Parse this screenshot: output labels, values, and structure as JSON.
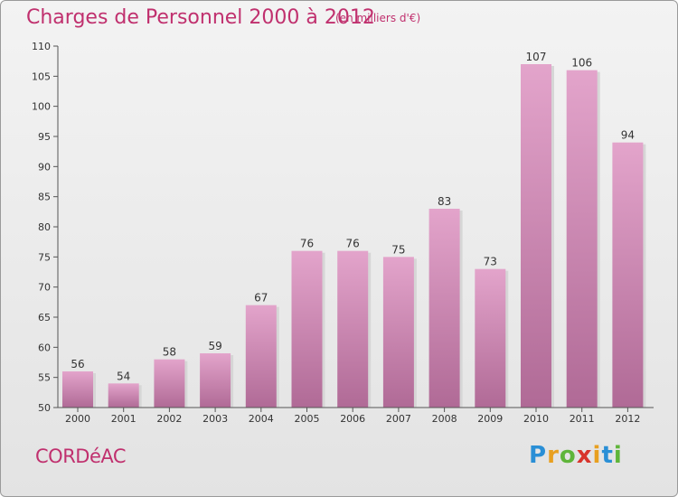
{
  "header": {
    "title": "Charges de Personnel 2000 à 2012",
    "subtitle": "(en milliers d'€)"
  },
  "footer": {
    "city": "CORDéAC",
    "logo_letters": [
      "P",
      "r",
      "o",
      "x",
      "i",
      "t",
      "i"
    ],
    "logo_colors": [
      "#2a8fd6",
      "#e8a020",
      "#5fb53a",
      "#d8342c",
      "#e8a020",
      "#2a8fd6",
      "#5fb53a"
    ]
  },
  "colors": {
    "bar_top": "#e3a4cb",
    "bar_bottom": "#b06a96",
    "accent": "#c0306e"
  },
  "chart_data": {
    "type": "bar",
    "title": "Charges de Personnel 2000 à 2012",
    "subtitle": "(en milliers d'€)",
    "categories": [
      "2000",
      "2001",
      "2002",
      "2003",
      "2004",
      "2005",
      "2006",
      "2007",
      "2008",
      "2009",
      "2010",
      "2011",
      "2012"
    ],
    "values": [
      56,
      54,
      58,
      59,
      67,
      76,
      76,
      75,
      83,
      73,
      107,
      106,
      94
    ],
    "ylim": [
      50,
      110
    ],
    "yticks": [
      50,
      55,
      60,
      65,
      70,
      75,
      80,
      85,
      90,
      95,
      100,
      105,
      110
    ],
    "grid": false,
    "data_labels": true
  }
}
